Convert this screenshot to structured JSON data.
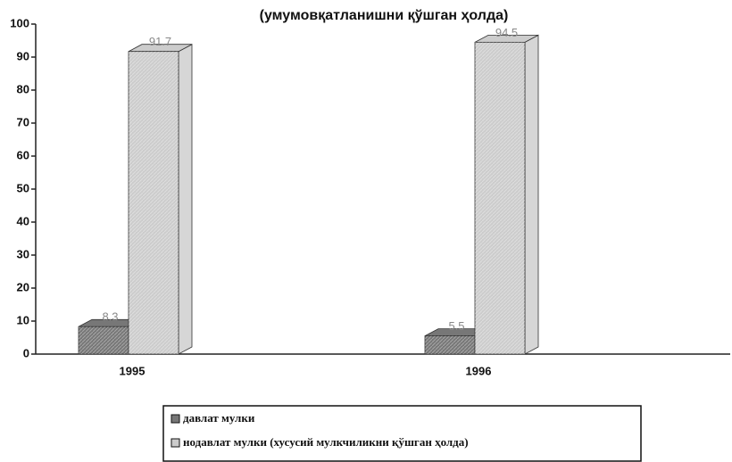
{
  "chart_data": {
    "type": "bar3d",
    "subtitle": "(умумовқатланишни қўшган ҳолда)",
    "categories": [
      "1995",
      "1996"
    ],
    "series": [
      {
        "name": "давлат мулки",
        "color": "#777777",
        "values": [
          8.3,
          5.5
        ]
      },
      {
        "name": "нодавлат мулки (хусусий мулкчиликни қўшган ҳолда)",
        "color": "#cccccc",
        "values": [
          91.7,
          94.5
        ]
      }
    ],
    "ylim": [
      0,
      100
    ],
    "yticks": [
      0,
      10,
      20,
      30,
      40,
      50,
      60,
      70,
      80,
      90,
      100
    ],
    "legend": "bottom"
  }
}
